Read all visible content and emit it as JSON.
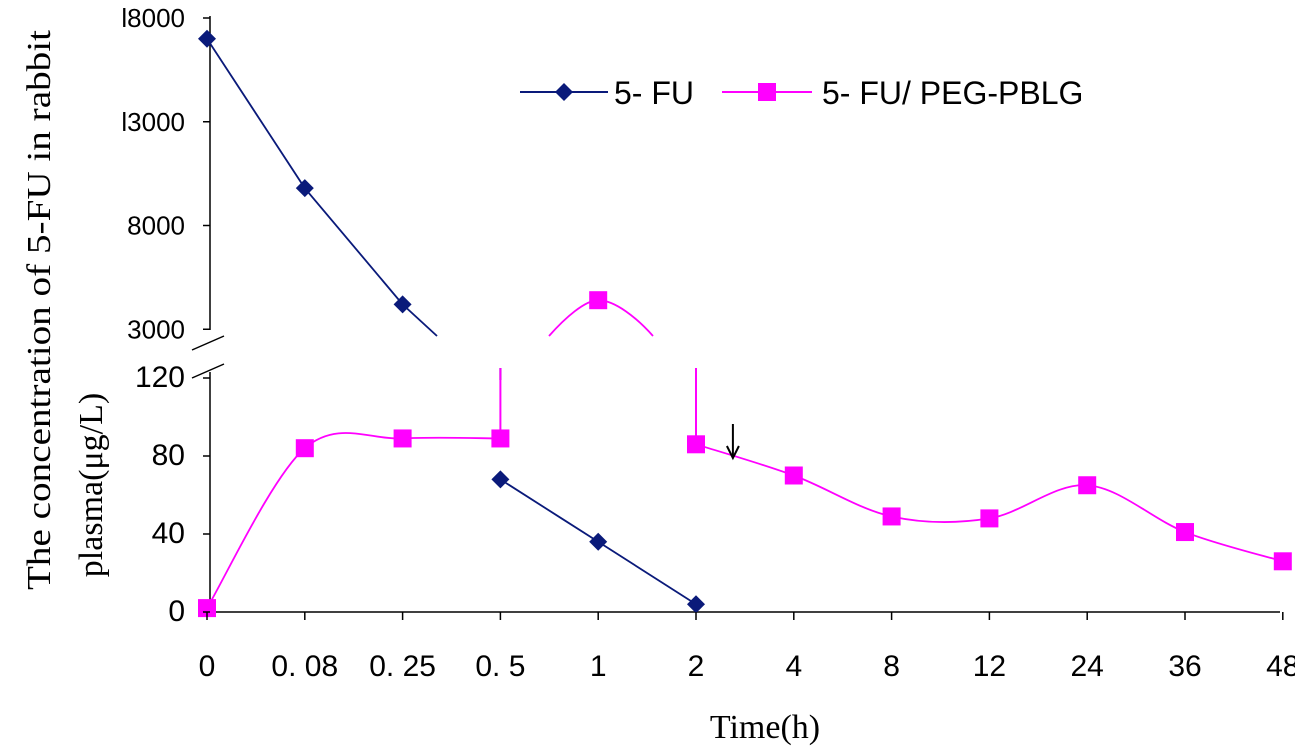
{
  "chart_data": {
    "type": "line",
    "title": "",
    "xlabel": "Time(h)",
    "ylabel_line1": "The concentration of 5-FU in rabbit",
    "ylabel_line2": "plasma(μg/L)",
    "categories": [
      "0",
      "0. 08",
      "0. 25",
      "0. 5",
      "1",
      "2",
      "4",
      "8",
      "12",
      "24",
      "36",
      "48"
    ],
    "y_axis_upper": {
      "ticks": [
        3000,
        8000,
        13000,
        18000
      ],
      "tick_labels": [
        "3000",
        "8000",
        "l3000",
        "l8000"
      ],
      "ylim": [
        2000,
        18000
      ]
    },
    "y_axis_lower": {
      "ticks": [
        0,
        40,
        80,
        120
      ],
      "tick_labels": [
        "0",
        "40",
        "80",
        "120"
      ],
      "ylim": [
        0,
        120
      ]
    },
    "legend_position": "top",
    "series": [
      {
        "name": "5- FU",
        "color": "#0a1a7a",
        "marker": "diamond",
        "points": [
          {
            "x": "0",
            "y": 17000,
            "axis": "upper"
          },
          {
            "x": "0. 08",
            "y": 9800,
            "axis": "upper"
          },
          {
            "x": "0. 25",
            "y": 4200,
            "axis": "upper"
          },
          {
            "x": "0. 5",
            "y": 68,
            "axis": "lower"
          },
          {
            "x": "1",
            "y": 36,
            "axis": "lower"
          },
          {
            "x": "2",
            "y": 4,
            "axis": "lower"
          }
        ]
      },
      {
        "name": "5- FU/ PEG-PBLG",
        "color": "#ff00ff",
        "marker": "square",
        "points": [
          {
            "x": "0",
            "y": 2,
            "axis": "lower"
          },
          {
            "x": "0. 08",
            "y": 84,
            "axis": "lower"
          },
          {
            "x": "0. 25",
            "y": 89,
            "axis": "lower"
          },
          {
            "x": "0. 5",
            "y": 89,
            "axis": "lower"
          },
          {
            "x": "1",
            "y": 4400,
            "axis": "upper"
          },
          {
            "x": "2",
            "y": 86,
            "axis": "lower"
          },
          {
            "x": "4",
            "y": 70,
            "axis": "lower"
          },
          {
            "x": "8",
            "y": 49,
            "axis": "lower"
          },
          {
            "x": "12",
            "y": 48,
            "axis": "lower"
          },
          {
            "x": "24",
            "y": 65,
            "axis": "lower"
          },
          {
            "x": "36",
            "y": 41,
            "axis": "lower"
          },
          {
            "x": "48",
            "y": 26,
            "axis": "lower"
          }
        ]
      }
    ],
    "annotations": [
      {
        "type": "arrow-down",
        "x_between": [
          "2",
          "4"
        ],
        "near_y": 80,
        "axis": "lower"
      }
    ]
  }
}
